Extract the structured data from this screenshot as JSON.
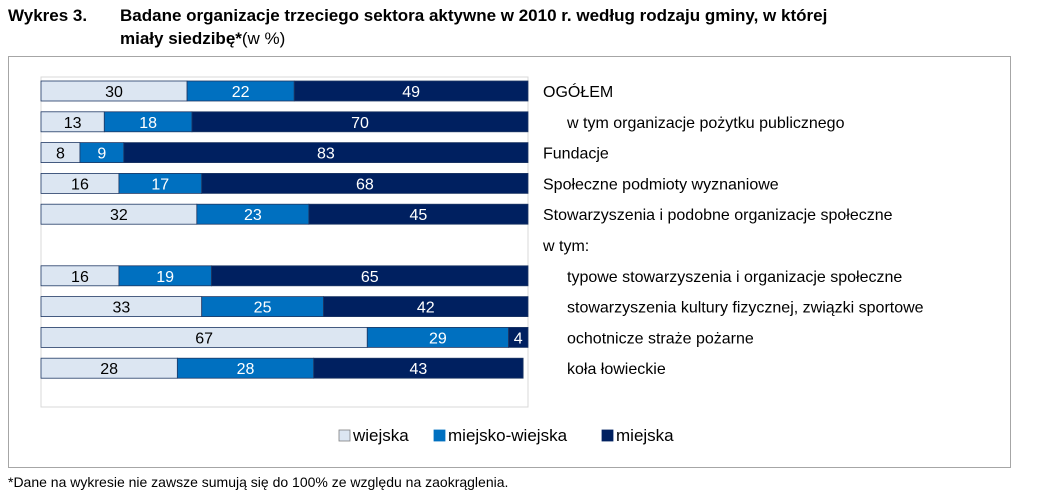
{
  "heading": {
    "label": "Wykres 3.",
    "line1": "Badane organizacje trzeciego sektora aktywne w 2010 r. według rodzaju gminy, w której",
    "line2_bold": "miały siedzibę*",
    "line2_suffix": "(w %)"
  },
  "footnote": "*Dane na wykresie nie zawsze sumują się do 100% ze względu na zaokrąglenia.",
  "chart_data": {
    "type": "bar",
    "orientation": "horizontal",
    "stacked": "percent",
    "categories": [
      "OGÓŁEM",
      "w tym organizacje pożytku publicznego",
      "Fundacje",
      "Społeczne podmioty wyznaniowe",
      "Stowarzyszenia i podobne organizacje społeczne",
      "w tym:",
      "typowe stowarzyszenia i organizacje społeczne",
      "stowarzyszenia kultury fizycznej, związki sportowe",
      "ochotnicze straże pożarne",
      "koła łowieckie"
    ],
    "series": [
      {
        "name": "wiejska",
        "color": "#dce6f2",
        "values": [
          30,
          13,
          8,
          16,
          32,
          null,
          16,
          33,
          67,
          28
        ]
      },
      {
        "name": "miejsko-wiejska",
        "color": "#0070c0",
        "values": [
          22,
          18,
          9,
          17,
          23,
          null,
          19,
          25,
          29,
          28
        ]
      },
      {
        "name": "miejska",
        "color": "#002060",
        "values": [
          49,
          70,
          83,
          68,
          45,
          null,
          65,
          42,
          4,
          43
        ]
      }
    ],
    "xlim": [
      0,
      100
    ],
    "legend": "bottom"
  }
}
